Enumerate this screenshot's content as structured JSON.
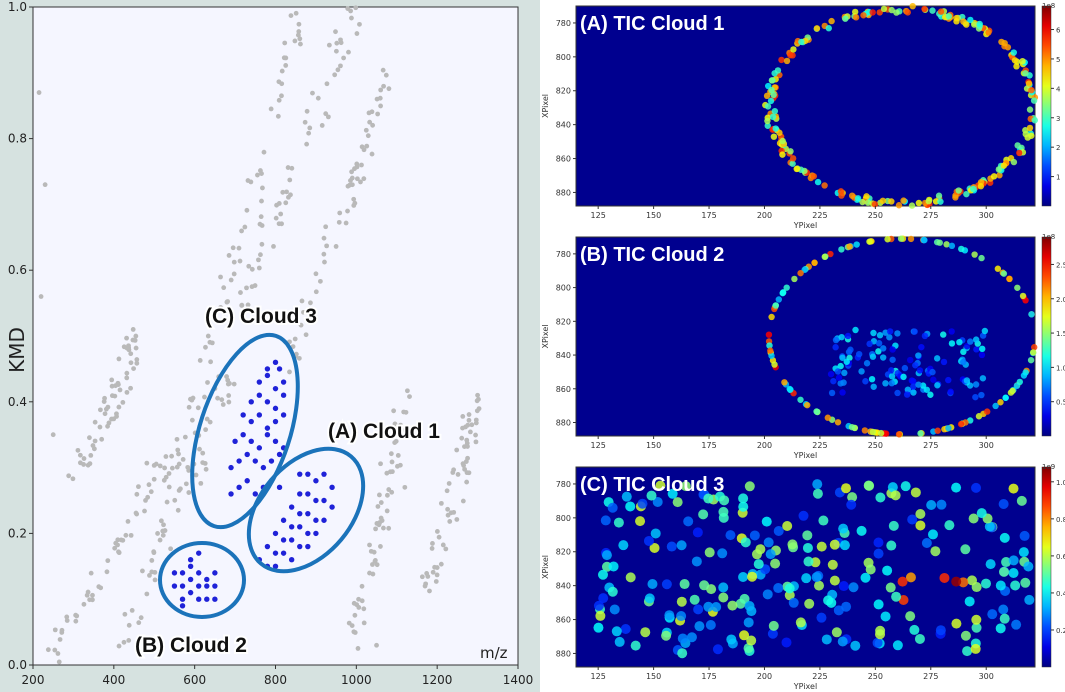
{
  "scatter": {
    "ylabel": "KMD",
    "xlabel": "m/z",
    "xlim": [
      200,
      1400
    ],
    "ylim": [
      0.0,
      1.0
    ],
    "xticks": [
      "200",
      "400",
      "600",
      "800",
      "1000",
      "1200",
      "1400"
    ],
    "yticks": [
      "0.0",
      "0.2",
      "0.4",
      "0.6",
      "0.8",
      "1.0"
    ],
    "annotations": {
      "cloud1": "(A) Cloud 1",
      "cloud2": "(B) Cloud 2",
      "cloud3": "(C) Cloud 3"
    },
    "colors": {
      "background": "#f5f6ff",
      "grey_points": "#b9b9b9",
      "cloud_points": "#1f22d8",
      "ellipse": "#1b73ba"
    }
  },
  "heatmaps": [
    {
      "title": "(A) TIC Cloud 1",
      "exponent": "1e8",
      "cbar_ticks": [
        "1",
        "2",
        "3",
        "4",
        "5",
        "6"
      ],
      "cbar_max": 6.8
    },
    {
      "title": "(B) TIC Cloud 2",
      "exponent": "1e8",
      "cbar_ticks": [
        "0.5",
        "1.0",
        "1.5",
        "2.0",
        "2.5"
      ],
      "cbar_max": 2.9
    },
    {
      "title": "(C) TIC Cloud 3",
      "exponent": "1e9",
      "cbar_ticks": [
        "0.2",
        "0.4",
        "0.6",
        "0.8",
        "1.0"
      ],
      "cbar_max": 1.08
    }
  ],
  "heatmap_axes": {
    "xlabel": "YPixel",
    "ylabel": "XPixel",
    "xticks": [
      "125",
      "150",
      "175",
      "200",
      "225",
      "250",
      "275",
      "300"
    ],
    "yticks": [
      "780",
      "800",
      "820",
      "840",
      "860",
      "880"
    ],
    "xlim": [
      115,
      322
    ],
    "ylim": [
      770,
      888
    ]
  },
  "chart_data": [
    {
      "type": "scatter",
      "xlabel": "m/z",
      "ylabel": "KMD",
      "xlim": [
        200,
        1400
      ],
      "ylim": [
        0,
        1.0
      ],
      "series": [
        {
          "name": "(A) Cloud 1",
          "x": [
            860,
            880,
            900,
            920,
            940,
            860,
            880,
            900,
            920,
            940,
            840,
            860,
            880,
            900,
            920,
            820,
            840,
            860,
            880,
            900,
            800,
            820,
            840,
            860,
            880,
            780,
            800,
            820,
            840,
            760,
            780,
            800
          ],
          "y": [
            0.29,
            0.29,
            0.28,
            0.29,
            0.27,
            0.26,
            0.26,
            0.25,
            0.25,
            0.24,
            0.24,
            0.23,
            0.23,
            0.22,
            0.22,
            0.22,
            0.21,
            0.21,
            0.2,
            0.2,
            0.2,
            0.19,
            0.19,
            0.18,
            0.18,
            0.18,
            0.17,
            0.17,
            0.16,
            0.16,
            0.15,
            0.15
          ]
        },
        {
          "name": "(B) Cloud 2",
          "x": [
            550,
            570,
            590,
            610,
            630,
            650,
            550,
            570,
            590,
            610,
            630,
            650,
            570,
            590,
            610,
            630,
            650,
            590,
            610,
            570
          ],
          "y": [
            0.14,
            0.14,
            0.15,
            0.14,
            0.13,
            0.14,
            0.12,
            0.12,
            0.13,
            0.12,
            0.12,
            0.12,
            0.1,
            0.11,
            0.1,
            0.1,
            0.1,
            0.16,
            0.17,
            0.09
          ]
        },
        {
          "name": "(C) Cloud 3",
          "x": [
            690,
            710,
            730,
            750,
            770,
            790,
            810,
            690,
            710,
            730,
            750,
            770,
            790,
            810,
            700,
            720,
            740,
            760,
            780,
            800,
            820,
            720,
            740,
            760,
            780,
            800,
            820,
            740,
            760,
            780,
            800,
            820,
            760,
            780,
            800,
            820,
            780,
            800,
            810
          ],
          "y": [
            0.26,
            0.27,
            0.28,
            0.26,
            0.27,
            0.28,
            0.27,
            0.3,
            0.31,
            0.32,
            0.31,
            0.3,
            0.31,
            0.32,
            0.34,
            0.35,
            0.34,
            0.33,
            0.35,
            0.34,
            0.33,
            0.38,
            0.37,
            0.38,
            0.36,
            0.37,
            0.38,
            0.4,
            0.41,
            0.4,
            0.39,
            0.41,
            0.43,
            0.44,
            0.42,
            0.43,
            0.45,
            0.46,
            0.45
          ]
        }
      ]
    },
    {
      "type": "heatmap",
      "title": "(A) TIC Cloud 1",
      "xlabel": "YPixel",
      "ylabel": "XPixel",
      "xlim": [
        115,
        322
      ],
      "ylim": [
        770,
        888
      ],
      "colorbar_range": [
        0,
        680000000.0
      ]
    },
    {
      "type": "heatmap",
      "title": "(B) TIC Cloud 2",
      "xlabel": "YPixel",
      "ylabel": "XPixel",
      "xlim": [
        115,
        322
      ],
      "ylim": [
        770,
        888
      ],
      "colorbar_range": [
        0,
        290000000.0
      ]
    },
    {
      "type": "heatmap",
      "title": "(C) TIC Cloud 3",
      "xlabel": "YPixel",
      "ylabel": "XPixel",
      "xlim": [
        115,
        322
      ],
      "ylim": [
        770,
        888
      ],
      "colorbar_range": [
        0,
        1080000000.0
      ]
    }
  ]
}
